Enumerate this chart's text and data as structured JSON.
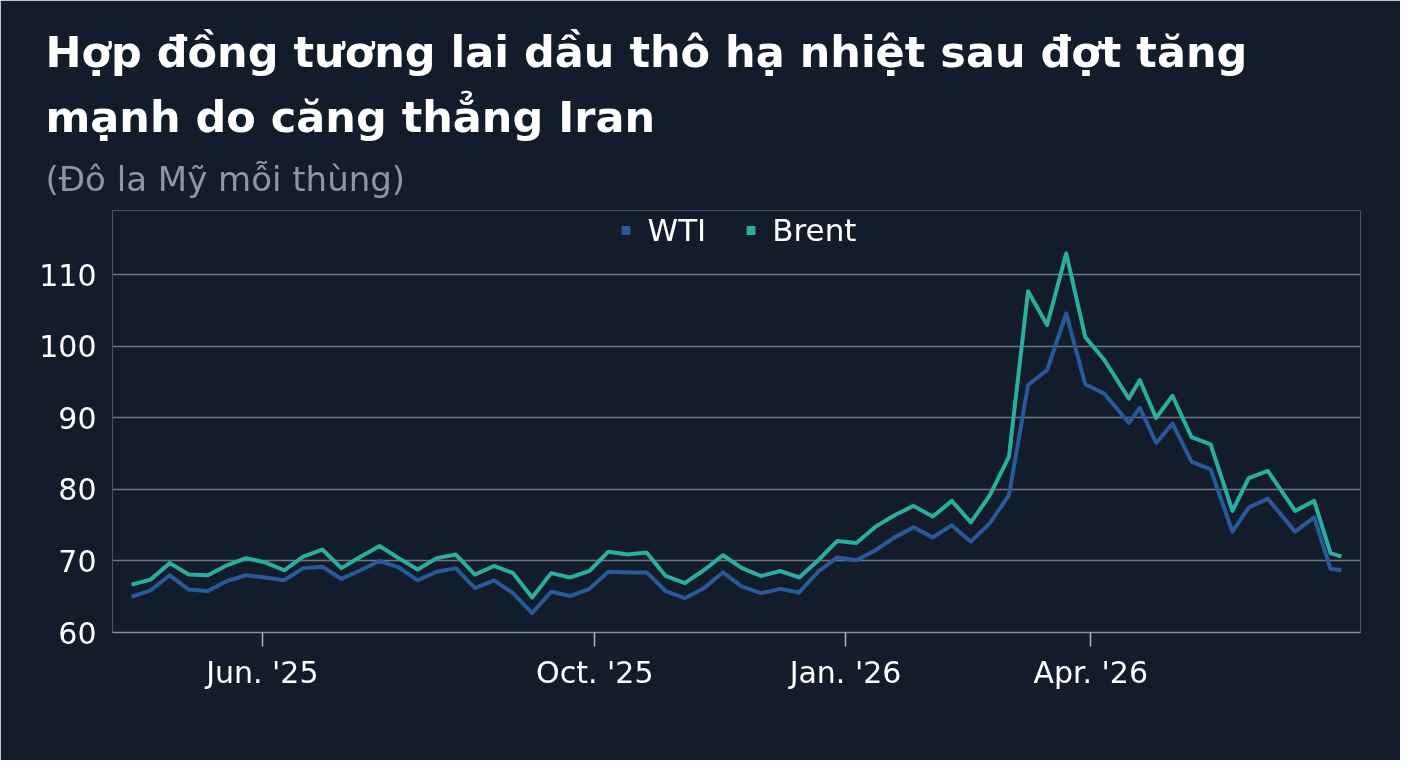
{
  "chart_data": {
    "type": "line",
    "title": "Hợp đồng tương lai dầu thô hạ nhiệt sau đợt tăng mạnh do căng thẳng Iran",
    "subtitle": "(Đô la Mỹ mỗi thùng)",
    "x": [
      "2025-04-14",
      "2025-04-21",
      "2025-04-28",
      "2025-05-05",
      "2025-05-12",
      "2025-05-19",
      "2025-05-26",
      "2025-06-02",
      "2025-06-09",
      "2025-06-16",
      "2025-06-23",
      "2025-06-30",
      "2025-07-07",
      "2025-07-14",
      "2025-07-21",
      "2025-07-28",
      "2025-08-04",
      "2025-08-11",
      "2025-08-18",
      "2025-08-25",
      "2025-09-01",
      "2025-09-08",
      "2025-09-15",
      "2025-09-22",
      "2025-09-29",
      "2025-10-06",
      "2025-10-13",
      "2025-10-20",
      "2025-10-27",
      "2025-11-03",
      "2025-11-10",
      "2025-11-17",
      "2025-11-24",
      "2025-12-01",
      "2025-12-08",
      "2025-12-15",
      "2025-12-22",
      "2025-12-29",
      "2026-01-05",
      "2026-01-12",
      "2026-01-19",
      "2026-01-26",
      "2026-02-02",
      "2026-02-09",
      "2026-02-16",
      "2026-02-23",
      "2026-03-02",
      "2026-03-09",
      "2026-03-16",
      "2026-03-23",
      "2026-03-30",
      "2026-04-06",
      "2026-04-15",
      "2026-04-19",
      "2026-04-25",
      "2026-05-01",
      "2026-05-08",
      "2026-05-15",
      "2026-05-23",
      "2026-05-29",
      "2026-06-05",
      "2026-06-15",
      "2026-06-22",
      "2026-06-28",
      "2026-07-02"
    ],
    "series": [
      {
        "name": "WTI",
        "color": "#285a9b",
        "values": [
          65.0,
          65.9,
          68.0,
          66.0,
          65.8,
          67.2,
          68.0,
          67.7,
          67.3,
          69.0,
          69.2,
          67.5,
          68.7,
          70.0,
          69.1,
          67.3,
          68.5,
          69.0,
          66.2,
          67.3,
          65.5,
          62.7,
          65.7,
          65.1,
          66.1,
          68.5,
          68.4,
          68.4,
          65.8,
          64.8,
          66.2,
          68.4,
          66.4,
          65.5,
          66.1,
          65.6,
          68.5,
          70.5,
          70.1,
          71.5,
          73.3,
          74.7,
          73.3,
          75.0,
          72.7,
          75.3,
          79.2,
          94.6,
          96.7,
          104.6,
          94.7,
          93.4,
          89.3,
          91.4,
          86.5,
          89.2,
          83.9,
          82.8,
          74.1,
          77.5,
          78.7,
          74.1,
          76.1,
          68.9,
          68.7
        ]
      },
      {
        "name": "Brent",
        "color": "#2aae9f",
        "values": [
          66.7,
          67.4,
          69.7,
          68.1,
          68.0,
          69.4,
          70.4,
          69.8,
          68.7,
          70.6,
          71.6,
          69.0,
          70.6,
          72.1,
          70.4,
          68.8,
          70.4,
          70.9,
          68.1,
          69.3,
          68.3,
          64.9,
          68.3,
          67.7,
          68.6,
          71.3,
          70.9,
          71.2,
          67.9,
          66.9,
          68.7,
          70.8,
          69.0,
          67.9,
          68.6,
          67.7,
          70.1,
          72.8,
          72.5,
          74.8,
          76.4,
          77.7,
          76.2,
          78.4,
          75.4,
          79.2,
          84.6,
          107.7,
          103.0,
          113.0,
          101.3,
          98.1,
          92.7,
          95.3,
          90.0,
          93.1,
          87.3,
          86.3,
          77.0,
          81.6,
          82.6,
          77.0,
          78.4,
          71.1,
          70.6
        ]
      }
    ],
    "xlim": [
      "2025-04-07",
      "2026-07-09"
    ],
    "xticks": [
      {
        "value": "2025-06-01",
        "label": "Jun. '25"
      },
      {
        "value": "2025-10-01",
        "label": "Oct. '25"
      },
      {
        "value": "2026-01-01",
        "label": "Jan. '26"
      },
      {
        "value": "2026-04-01",
        "label": "Apr. '26"
      }
    ],
    "ylim": [
      60,
      119
    ],
    "yticks": [
      60,
      70,
      80,
      90,
      100,
      110
    ],
    "grid": "y",
    "legend": "top",
    "line_style": "solid"
  }
}
